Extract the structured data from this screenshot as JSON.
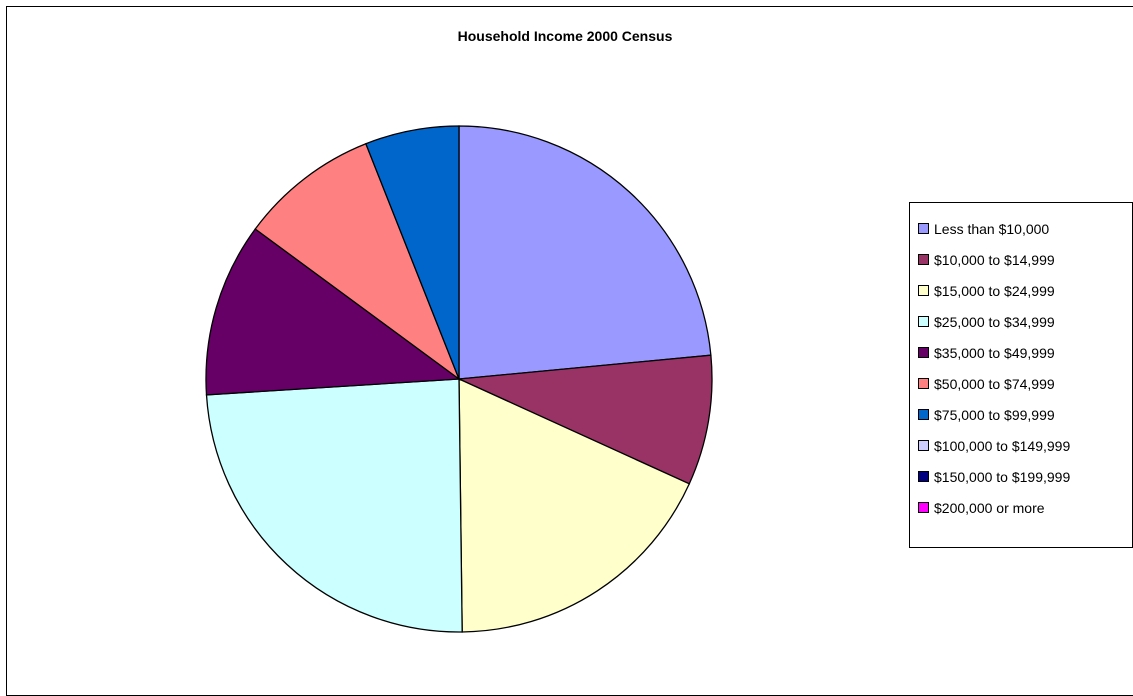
{
  "chart_data": {
    "type": "pie",
    "title": "Household Income 2000 Census",
    "legend_position": "right",
    "categories": [
      "Less than $10,000",
      "$10,000 to $14,999",
      "$15,000 to $24,999",
      "$25,000 to $34,999",
      "$35,000 to $49,999",
      "$50,000 to $74,999",
      "$75,000 to $99,999",
      "$100,000 to $149,999",
      "$150,000 to $199,999",
      "$200,000 or more"
    ],
    "values": [
      23.5,
      8.3,
      18.0,
      24.2,
      11.1,
      8.9,
      6.0,
      0,
      0,
      0
    ],
    "colors": [
      "#9999FF",
      "#993366",
      "#FFFFCC",
      "#CCFFFF",
      "#660066",
      "#FF8080",
      "#0066CC",
      "#CCCCFF",
      "#000080",
      "#FF00FF"
    ]
  }
}
